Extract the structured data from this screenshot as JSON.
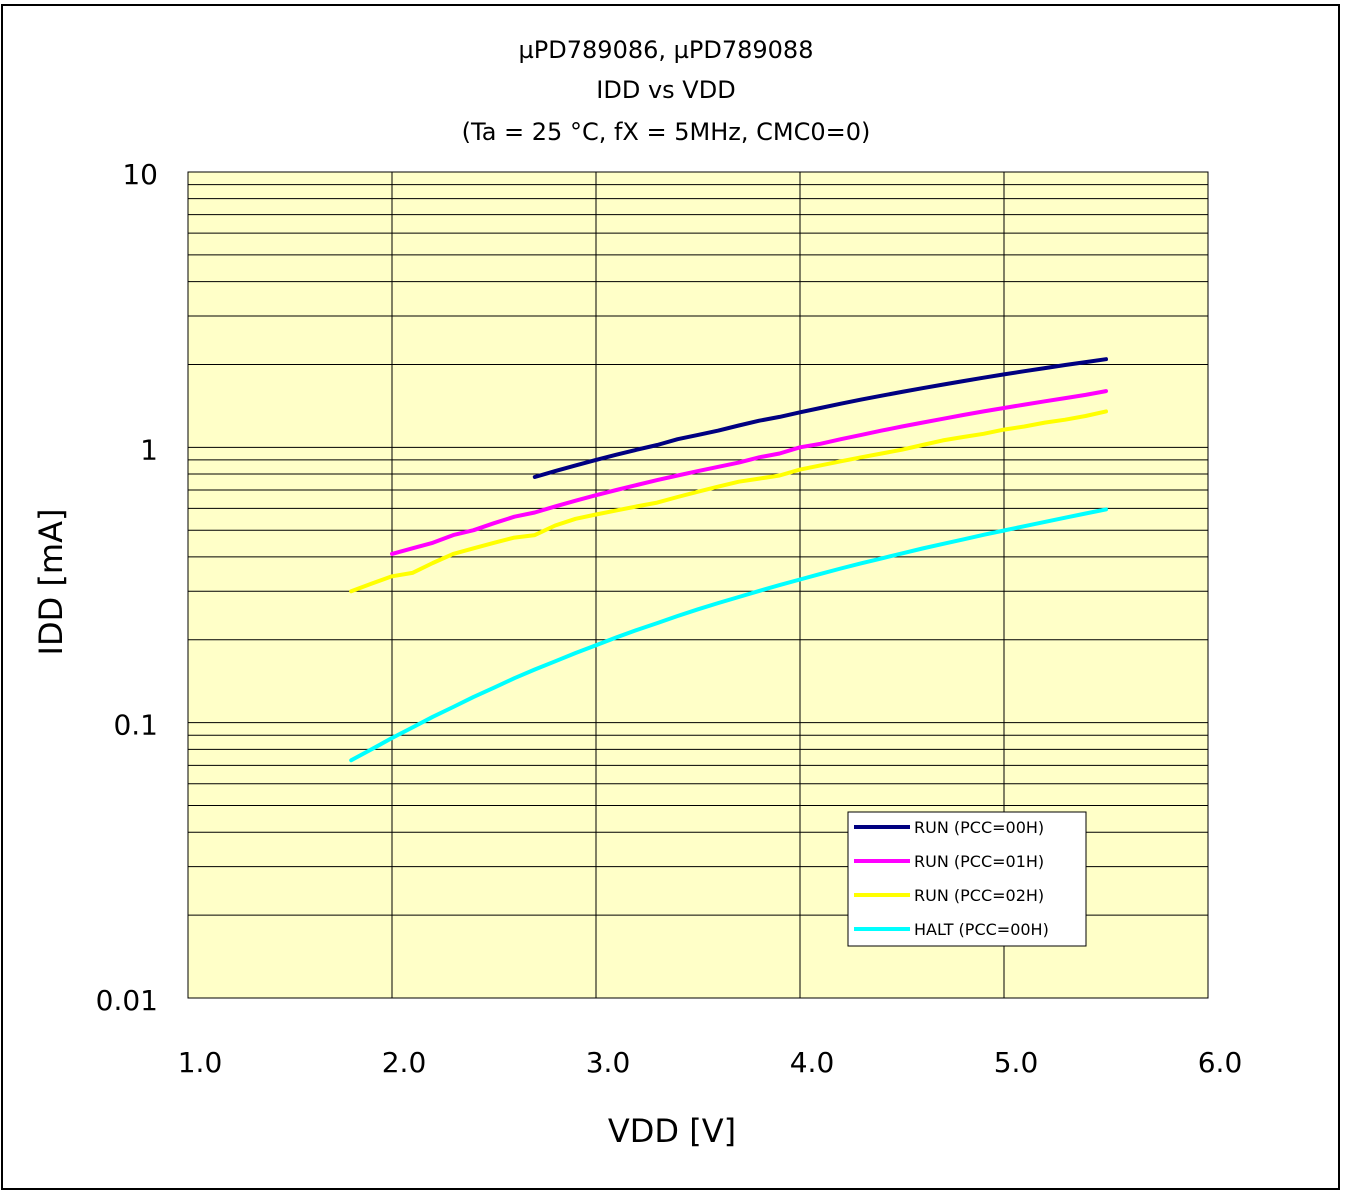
{
  "chart_data": {
    "type": "line",
    "title": "µPD789086, µPD789088",
    "subtitle": "IDD vs VDD",
    "conditions": "(Ta = 25 °C, fX = 5MHz, CMC0=0)",
    "xlabel": "VDD [V]",
    "ylabel": "IDD [mA]",
    "xlim": [
      1.0,
      6.0
    ],
    "ylim": [
      0.01,
      10
    ],
    "yscale": "log",
    "grid": true,
    "legend_position": "bottom-right",
    "plot_background": "#FFFFC8",
    "x_ticks": [
      1.0,
      2.0,
      3.0,
      4.0,
      5.0,
      6.0
    ],
    "x_tick_labels": [
      "1.0",
      "2.0",
      "3.0",
      "4.0",
      "5.0",
      "6.0"
    ],
    "y_ticks": [
      0.01,
      0.1,
      1,
      10
    ],
    "y_tick_labels": [
      "0.01",
      "0.1",
      "1",
      "10"
    ],
    "series": [
      {
        "name": "RUN (PCC=00H)",
        "color": "#000080",
        "x": [
          2.7,
          2.8,
          2.9,
          3.0,
          3.1,
          3.2,
          3.3,
          3.4,
          3.5,
          3.6,
          3.7,
          3.8,
          3.9,
          4.0,
          4.1,
          4.2,
          4.3,
          4.4,
          4.5,
          4.6,
          4.7,
          4.8,
          4.9,
          5.0,
          5.1,
          5.2,
          5.3,
          5.4,
          5.5
        ],
        "y": [
          0.78,
          0.82,
          0.86,
          0.9,
          0.94,
          0.98,
          1.02,
          1.07,
          1.11,
          1.15,
          1.2,
          1.25,
          1.29,
          1.34,
          1.39,
          1.44,
          1.49,
          1.54,
          1.59,
          1.64,
          1.69,
          1.74,
          1.79,
          1.84,
          1.89,
          1.94,
          1.99,
          2.04,
          2.09
        ]
      },
      {
        "name": "RUN (PCC=01H)",
        "color": "#FF00FF",
        "x": [
          2.0,
          2.1,
          2.2,
          2.3,
          2.4,
          2.5,
          2.6,
          2.7,
          2.8,
          2.9,
          3.0,
          3.1,
          3.2,
          3.3,
          3.4,
          3.5,
          3.6,
          3.7,
          3.8,
          3.9,
          4.0,
          4.1,
          4.2,
          4.3,
          4.4,
          4.5,
          4.6,
          4.7,
          4.8,
          4.9,
          5.0,
          5.1,
          5.2,
          5.3,
          5.4,
          5.5
        ],
        "y": [
          0.41,
          0.43,
          0.45,
          0.48,
          0.5,
          0.53,
          0.56,
          0.58,
          0.61,
          0.64,
          0.67,
          0.7,
          0.73,
          0.76,
          0.79,
          0.82,
          0.85,
          0.88,
          0.92,
          0.95,
          1.0,
          1.03,
          1.07,
          1.11,
          1.15,
          1.19,
          1.23,
          1.27,
          1.31,
          1.35,
          1.39,
          1.43,
          1.47,
          1.51,
          1.55,
          1.6
        ]
      },
      {
        "name": "RUN (PCC=02H)",
        "color": "#FFFF00",
        "x": [
          1.8,
          1.9,
          2.0,
          2.1,
          2.2,
          2.3,
          2.4,
          2.5,
          2.6,
          2.7,
          2.8,
          2.9,
          3.0,
          3.1,
          3.2,
          3.3,
          3.4,
          3.5,
          3.6,
          3.7,
          3.8,
          3.9,
          4.0,
          4.1,
          4.2,
          4.3,
          4.4,
          4.5,
          4.6,
          4.7,
          4.8,
          4.9,
          5.0,
          5.1,
          5.2,
          5.3,
          5.4,
          5.5
        ],
        "y": [
          0.3,
          0.32,
          0.34,
          0.35,
          0.38,
          0.41,
          0.43,
          0.45,
          0.47,
          0.48,
          0.52,
          0.55,
          0.57,
          0.59,
          0.61,
          0.63,
          0.66,
          0.69,
          0.72,
          0.75,
          0.77,
          0.79,
          0.83,
          0.86,
          0.89,
          0.92,
          0.95,
          0.98,
          1.02,
          1.06,
          1.09,
          1.12,
          1.16,
          1.19,
          1.23,
          1.26,
          1.3,
          1.35
        ]
      },
      {
        "name": "HALT (PCC=00H)",
        "color": "#00FFFF",
        "x": [
          1.8,
          1.9,
          2.0,
          2.1,
          2.2,
          2.3,
          2.4,
          2.5,
          2.6,
          2.7,
          2.8,
          2.9,
          3.0,
          3.1,
          3.2,
          3.3,
          3.4,
          3.5,
          3.6,
          3.7,
          3.8,
          3.9,
          4.0,
          4.1,
          4.2,
          4.3,
          4.4,
          4.5,
          4.6,
          4.7,
          4.8,
          4.9,
          5.0,
          5.1,
          5.2,
          5.3,
          5.4,
          5.5
        ],
        "y": [
          0.073,
          0.08,
          0.088,
          0.096,
          0.105,
          0.114,
          0.124,
          0.134,
          0.145,
          0.156,
          0.167,
          0.179,
          0.191,
          0.204,
          0.217,
          0.23,
          0.244,
          0.258,
          0.272,
          0.286,
          0.301,
          0.316,
          0.331,
          0.347,
          0.363,
          0.379,
          0.395,
          0.412,
          0.429,
          0.446,
          0.463,
          0.481,
          0.499,
          0.517,
          0.536,
          0.555,
          0.575,
          0.595
        ]
      }
    ]
  }
}
